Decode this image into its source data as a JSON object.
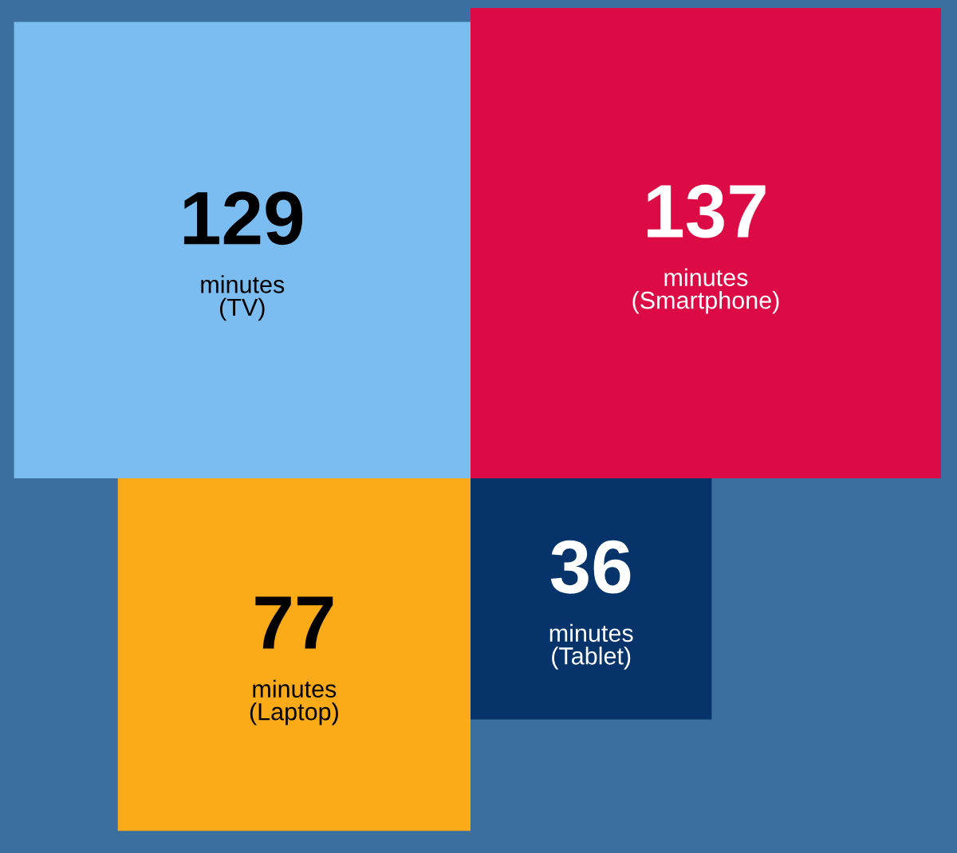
{
  "chart_data": {
    "type": "other",
    "categories": [
      "minutes\n(TV)",
      "minutes\n(Smartphone)",
      "minutes\n(Laptop)",
      "minutes\n(Tablet)"
    ],
    "values": [
      129,
      137,
      77,
      36
    ],
    "colors": [
      "#7bbdf0",
      "#dc0a45",
      "#fbab18",
      "#06346a"
    ],
    "data_labels": true
  }
}
